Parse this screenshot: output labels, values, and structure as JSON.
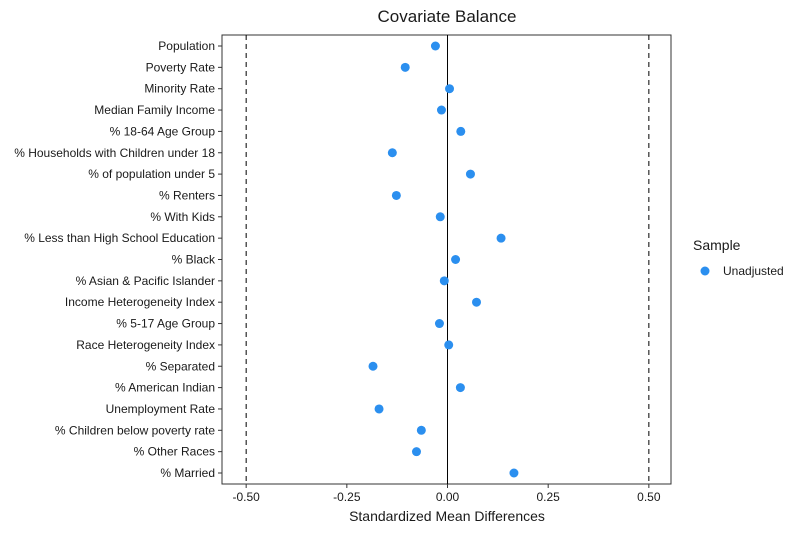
{
  "chart_data": {
    "type": "scatter",
    "title": "Covariate Balance",
    "xlabel": "Standardized Mean Differences",
    "ylabel": "",
    "xlim": [
      -0.56,
      0.555
    ],
    "x_ticks": [
      -0.5,
      -0.25,
      0.0,
      0.25,
      0.5
    ],
    "x_tick_labels": [
      "-0.50",
      "-0.25",
      "0.00",
      "0.25",
      "0.50"
    ],
    "reference_lines": {
      "solid": 0,
      "dashed": [
        -0.5,
        0.5
      ]
    },
    "grid": false,
    "legend": {
      "title": "Sample",
      "placement": "right",
      "entries": [
        {
          "label": "Unadjusted",
          "color": "#2b8fef"
        }
      ]
    },
    "categories": [
      "Population",
      "Poverty Rate",
      "Minority Rate",
      "Median Family Income",
      "% 18-64 Age Group",
      "% Households with Children under 18",
      "% of population under 5",
      "% Renters",
      "% With Kids",
      "% Less than High School Education",
      "% Black",
      "% Asian & Pacific Islander",
      "Income Heterogeneity Index",
      "% 5-17 Age Group",
      "Race Heterogeneity Index",
      "% Separated",
      "% American Indian",
      "Unemployment Rate",
      "% Children below poverty rate",
      "% Other Races",
      "% Married"
    ],
    "series": [
      {
        "name": "Unadjusted",
        "color": "#2b8fef",
        "values": [
          -0.03,
          -0.105,
          0.005,
          -0.015,
          0.033,
          -0.137,
          0.057,
          -0.127,
          -0.018,
          0.133,
          0.02,
          -0.008,
          0.072,
          -0.02,
          0.003,
          -0.185,
          0.032,
          -0.17,
          -0.065,
          -0.077,
          0.165
        ]
      }
    ]
  }
}
